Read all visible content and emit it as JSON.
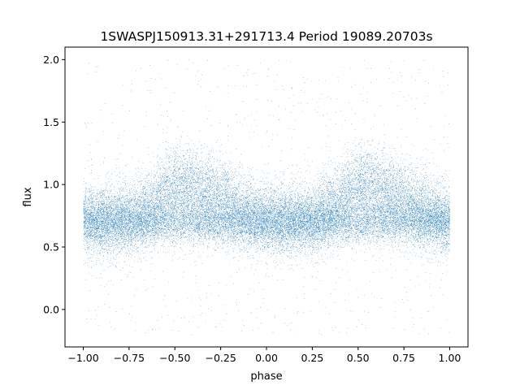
{
  "chart_data": {
    "type": "scatter",
    "title": "1SWASPJ150913.31+291713.4 Period 19089.20703s",
    "xlabel": "phase",
    "ylabel": "flux",
    "xlim": [
      -1.1,
      1.1
    ],
    "ylim": [
      -0.3,
      2.1
    ],
    "xticks": [
      -1.0,
      -0.75,
      -0.5,
      -0.25,
      0.0,
      0.25,
      0.5,
      0.75,
      1.0
    ],
    "xtick_labels": [
      "−1.00",
      "−0.75",
      "−0.50",
      "−0.25",
      "0.00",
      "0.25",
      "0.50",
      "0.75",
      "1.00"
    ],
    "yticks": [
      0.0,
      0.5,
      1.0,
      1.5,
      2.0
    ],
    "ytick_labels": [
      "0.0",
      "0.5",
      "1.0",
      "1.5",
      "2.0"
    ],
    "grid": false,
    "point_color": "#1f77b4",
    "point_count": 30000,
    "light_curve_profile": {
      "phase": [
        -1.0,
        -0.875,
        -0.75,
        -0.625,
        -0.55,
        -0.5,
        -0.4,
        -0.25,
        -0.1,
        0.0,
        0.125,
        0.25,
        0.375,
        0.45,
        0.5,
        0.6,
        0.75,
        0.9,
        1.0
      ],
      "mean_flux": [
        0.72,
        0.72,
        0.73,
        0.82,
        0.95,
        1.0,
        0.98,
        0.88,
        0.77,
        0.72,
        0.72,
        0.73,
        0.82,
        0.95,
        1.0,
        0.98,
        0.88,
        0.77,
        0.72
      ],
      "secondary_flux_level": 0.7,
      "flux_range_shown": [
        -0.2,
        2.0
      ]
    }
  }
}
